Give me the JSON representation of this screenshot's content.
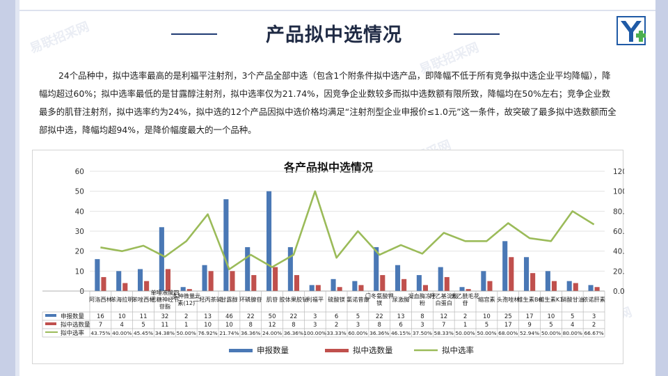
{
  "page": {
    "title": "产品拟中选情况",
    "paragraph": "24个品种中，拟中选率最高的是利福平注射剂，3个产品全部中选（包含1个附条件拟中选产品，即降幅不低于所有竞争拟中选企业平均降幅），降幅均超过60%；拟中选率最低的是甘露醇注射剂，拟中选率仅为21.74%，因竞争企业数较多而拟中选数额有限所致，降幅均在50%左右；竞争企业数最多的肌苷注射剂，拟中选率约为24%，拟中选的12个产品因拟中选价格均满足“注射剂型企业申报价≤1.0元”这一条件，故突破了最多拟中选数额而全部拟中选，降幅均超94%，是降价幅度最大的一个品种。",
    "watermark": "易联招采网",
    "colors": {
      "bar1": "#4a78b5",
      "bar2": "#c0504d",
      "line": "#9bbb59",
      "title": "#1f2a44"
    }
  },
  "chart_data": {
    "type": "bar",
    "title": "各产品拟中选情况",
    "categories": [
      "阿洛西林",
      "苯海拉明",
      "苯唑西林",
      "单唾液酸四己糖神经节苷脂",
      "多种微量元素(12)",
      "二羟丙茶碱",
      "甘露醇",
      "环磷腺苷",
      "肌苷",
      "胶体果胶铋",
      "利福平",
      "硫酸镁",
      "氯诺昔康",
      "门冬氨酸钾镁",
      "尿激酶",
      "凝血酶冻干粉",
      "羟乙基淀粉白蛋白",
      "去乙酰毛花苷",
      "缩宫素",
      "头孢唑林",
      "维生素B6",
      "维生素K1",
      "硝酸甘油",
      "依诺肝素"
    ],
    "category_labels": [
      "阿洛西林",
      "苯海拉明",
      "苯唑西林",
      "单唾液酸四己糖神经节苷脂",
      "多种微量元素(12)",
      "二羟丙茶碱",
      "甘露醇",
      "环磷腺苷",
      "肌苷",
      "胶体果胶铋",
      "利福平",
      "硫酸镁",
      "氯诺昔康",
      "门冬氨酸钾镁",
      "尿激酶",
      "凝血酶冻干粉",
      "羟乙基淀粉白蛋白",
      "去乙酰毛花苷",
      "缩宫素",
      "头孢唑林",
      "维生素B6",
      "维生素K1",
      "硝酸甘油",
      "依诺肝素"
    ],
    "series": [
      {
        "name": "申报数量",
        "type": "bar",
        "axis": "left",
        "values": [
          16,
          10,
          11,
          32,
          2,
          13,
          46,
          22,
          50,
          22,
          3,
          6,
          5,
          22,
          13,
          8,
          12,
          2,
          10,
          25,
          17,
          10,
          5,
          3
        ]
      },
      {
        "name": "拟中选数量",
        "type": "bar",
        "axis": "left",
        "values": [
          7,
          4,
          5,
          11,
          1,
          10,
          10,
          8,
          12,
          8,
          3,
          2,
          3,
          8,
          6,
          3,
          7,
          1,
          5,
          17,
          9,
          5,
          4,
          2
        ]
      },
      {
        "name": "拟中选率",
        "type": "line",
        "axis": "right",
        "values": [
          43.75,
          40.0,
          45.45,
          34.38,
          50.0,
          76.92,
          21.74,
          36.36,
          24.0,
          36.36,
          100.0,
          33.33,
          60.0,
          36.36,
          46.15,
          37.5,
          58.33,
          50.0,
          50.0,
          68.0,
          52.94,
          50.0,
          80.0,
          66.67
        ],
        "labels": [
          "43.75%",
          "40.00%",
          "45.45%",
          "34.38%",
          "50.00%",
          "76.92%",
          "21.74%",
          "36.36%",
          "24.00%",
          "36.36%",
          "100.00%",
          "33.33%",
          "60.00%",
          "36.36%",
          "46.15%",
          "37.50%",
          "58.33%",
          "50.00%",
          "50.00%",
          "68.00%",
          "52.94%",
          "50.00%",
          "80.00%",
          "66.67%"
        ]
      }
    ],
    "ylim_left": [
      0,
      60
    ],
    "yticks_left": [
      0,
      10,
      20,
      30,
      40,
      50,
      60
    ],
    "ylim_right": [
      0,
      120
    ],
    "yticks_right": [
      "0.00%",
      "20.00%",
      "40.00%",
      "60.00%",
      "80.00%",
      "100.00%",
      "120.00%"
    ],
    "legend_placement": "bottom",
    "grid": true,
    "data_table": true
  }
}
